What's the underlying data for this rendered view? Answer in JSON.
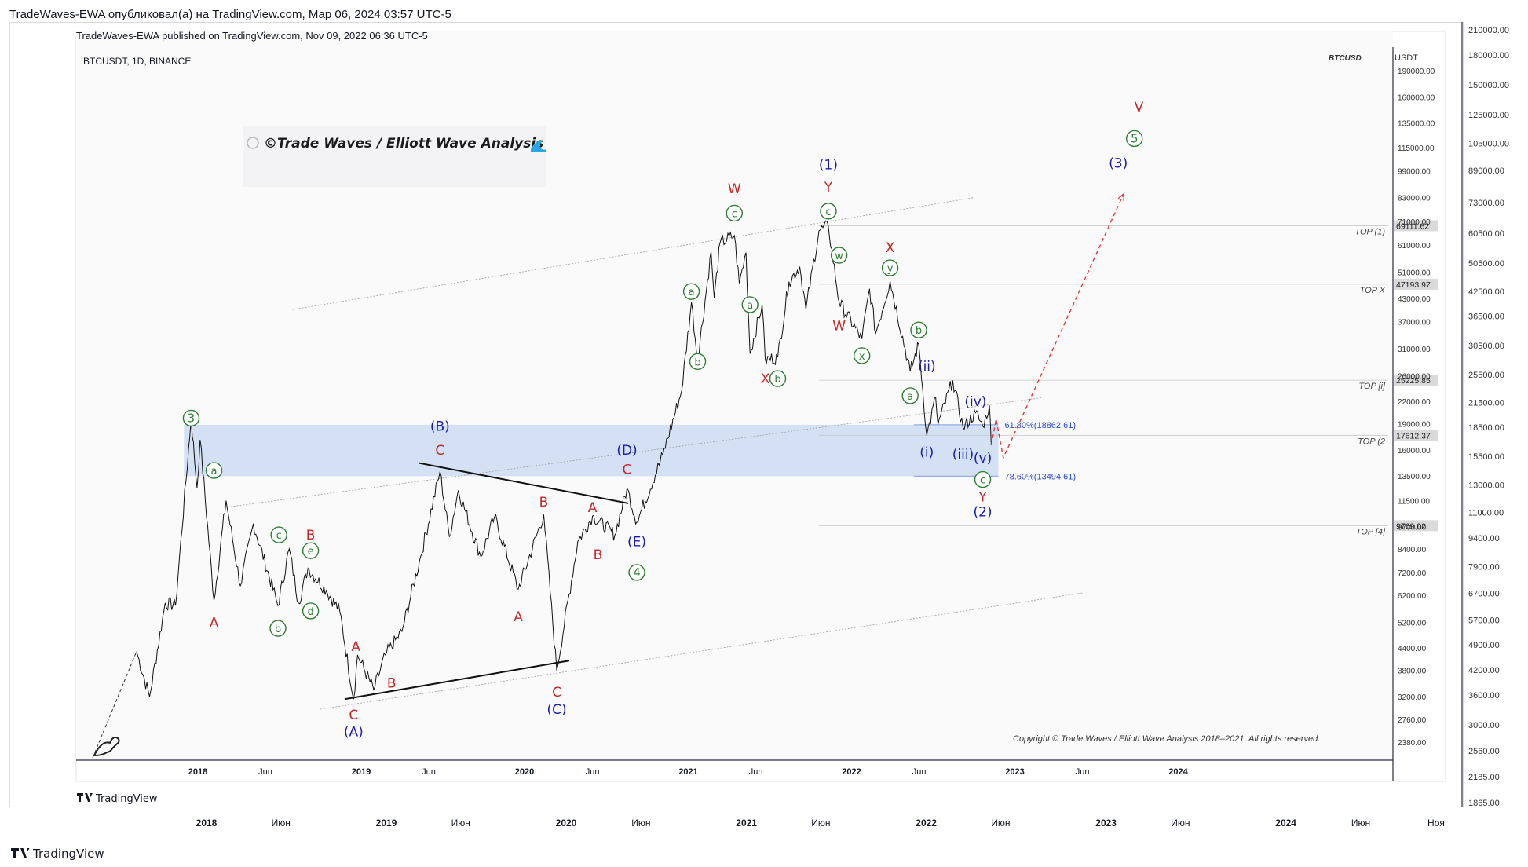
{
  "header": {
    "outer_caption": "TradeWaves-EWA опубликовал(а) на TradingView.com, Мар 06, 2024 03:57 UTC-5",
    "inner_caption": "TradeWaves-EWA published on TradingView.com, Nov 09, 2022 06:36 UTC-5",
    "symbol": "BTCUSDT, 1D, BINANCE",
    "watermark_symbol": "BTCUSD",
    "currency": "USDT",
    "logo_text": "©Trade Waves / Elliott Wave Analysis",
    "copyright": "Copyright © Trade Waves / Elliott Wave Analysis 2018–2021. All rights reserved."
  },
  "brand": {
    "inner": "TradingView",
    "outer": "TradingView"
  },
  "colors": {
    "wave_red": "#c62828",
    "wave_blue": "#1a1ab5",
    "wave_green": "#2e7d32",
    "zone_fill": "#c7d7f2",
    "projection": "#e53935"
  },
  "chart_data": {
    "type": "line",
    "title": "BTCUSDT, 1D, BINANCE",
    "ylabel": "USDT",
    "scale": "log",
    "ylim": [
      2380,
      190000
    ],
    "x_ticks_inner": [
      "2018",
      "Jun",
      "2019",
      "Jun",
      "2020",
      "Jun",
      "2021",
      "Jun",
      "2022",
      "Jun",
      "2023",
      "Jun",
      "2024"
    ],
    "x_ticks_outer": [
      "2018",
      "Июн",
      "2019",
      "Июн",
      "2020",
      "Июн",
      "2021",
      "Июн",
      "2022",
      "Июн",
      "2023",
      "Июн",
      "2024",
      "Июн",
      "Ноя"
    ],
    "y_ticks_inner": [
      "190000.00",
      "160000.00",
      "135000.00",
      "115000.00",
      "99000.00",
      "83000.00",
      "71000.00",
      "61000.00",
      "51000.00",
      "43000.00",
      "37000.00",
      "31000.00",
      "26000.00",
      "22000.00",
      "19000.00",
      "16000.00",
      "13500.00",
      "11500.00",
      "9700.00",
      "8400.00",
      "7200.00",
      "6200.00",
      "5200.00",
      "4400.00",
      "3800.00",
      "3200.00",
      "2760.00",
      "2380.00"
    ],
    "y_ticks_outer": [
      "210000.00",
      "180000.00",
      "150000.00",
      "125000.00",
      "105000.00",
      "89000.00",
      "73000.00",
      "60500.00",
      "50500.00",
      "42500.00",
      "36500.00",
      "30500.00",
      "25500.00",
      "21500.00",
      "18500.00",
      "15500.00",
      "13000.00",
      "11000.00",
      "9400.00",
      "7900.00",
      "6700.00",
      "5700.00",
      "4900.00",
      "4200.00",
      "3600.00",
      "3000.00",
      "2560.00",
      "2185.00",
      "1865.00"
    ],
    "price_tags": [
      "69111.62",
      "47193.97",
      "25225.85",
      "17612.37",
      "9769.02"
    ],
    "level_labels": [
      "TOP (1)",
      "TOP X",
      "TOP [i]",
      "TOP (2",
      "TOP [4]"
    ],
    "fib_levels": [
      {
        "label": "61.80%(18862.61)",
        "value": 18862.61
      },
      {
        "label": "78.60%(13494.61)",
        "value": 13494.61
      }
    ],
    "series": [
      {
        "name": "BTCUSDT",
        "points": [
          [
            "2017-08-17",
            4300
          ],
          [
            "2017-09-15",
            3200
          ],
          [
            "2017-10-20",
            5900
          ],
          [
            "2017-11-12",
            5800
          ],
          [
            "2017-12-17",
            19700
          ],
          [
            "2017-12-30",
            12500
          ],
          [
            "2018-01-06",
            17100
          ],
          [
            "2018-02-06",
            6000
          ],
          [
            "2018-03-05",
            11500
          ],
          [
            "2018-04-06",
            6600
          ],
          [
            "2018-05-05",
            9900
          ],
          [
            "2018-06-29",
            5800
          ],
          [
            "2018-07-24",
            8400
          ],
          [
            "2018-08-14",
            5900
          ],
          [
            "2018-09-04",
            7400
          ],
          [
            "2018-10-15",
            6400
          ],
          [
            "2018-11-14",
            5600
          ],
          [
            "2018-12-15",
            3150
          ],
          [
            "2018-12-24",
            4200
          ],
          [
            "2019-01-29",
            3350
          ],
          [
            "2019-02-24",
            4200
          ],
          [
            "2019-04-02",
            4900
          ],
          [
            "2019-05-14",
            8000
          ],
          [
            "2019-06-26",
            13900
          ],
          [
            "2019-07-17",
            9100
          ],
          [
            "2019-08-06",
            12300
          ],
          [
            "2019-09-25",
            8000
          ],
          [
            "2019-10-26",
            10350
          ],
          [
            "2019-12-18",
            6450
          ],
          [
            "2020-02-13",
            10500
          ],
          [
            "2020-03-13",
            3800
          ],
          [
            "2020-04-29",
            8800
          ],
          [
            "2020-06-01",
            10400
          ],
          [
            "2020-07-21",
            9200
          ],
          [
            "2020-08-17",
            12450
          ],
          [
            "2020-09-08",
            10000
          ],
          [
            "2020-11-05",
            15500
          ],
          [
            "2020-12-17",
            23500
          ],
          [
            "2021-01-08",
            41900
          ],
          [
            "2021-01-22",
            28800
          ],
          [
            "2021-02-21",
            58300
          ],
          [
            "2021-02-28",
            43000
          ],
          [
            "2021-03-13",
            61800
          ],
          [
            "2021-04-14",
            64800
          ],
          [
            "2021-04-25",
            47500
          ],
          [
            "2021-05-10",
            58000
          ],
          [
            "2021-05-19",
            30000
          ],
          [
            "2021-06-15",
            41300
          ],
          [
            "2021-06-22",
            28800
          ],
          [
            "2021-07-20",
            29300
          ],
          [
            "2021-08-14",
            48000
          ],
          [
            "2021-09-07",
            52900
          ],
          [
            "2021-09-21",
            40000
          ],
          [
            "2021-10-20",
            66900
          ],
          [
            "2021-11-10",
            69000
          ],
          [
            "2021-12-04",
            42000
          ],
          [
            "2022-01-24",
            33000
          ],
          [
            "2022-02-10",
            45800
          ],
          [
            "2022-02-24",
            34300
          ],
          [
            "2022-03-28",
            48200
          ],
          [
            "2022-05-12",
            26700
          ],
          [
            "2022-05-31",
            31900
          ],
          [
            "2022-06-18",
            17600
          ],
          [
            "2022-07-08",
            22500
          ],
          [
            "2022-07-13",
            18900
          ],
          [
            "2022-08-15",
            25200
          ],
          [
            "2022-09-07",
            18500
          ],
          [
            "2022-10-05",
            20400
          ],
          [
            "2022-10-21",
            18700
          ],
          [
            "2022-11-05",
            21400
          ],
          [
            "2022-11-09",
            16500
          ]
        ]
      },
      {
        "name": "projection",
        "points": [
          [
            "2022-11-09",
            16500
          ],
          [
            "2022-11-20",
            19600
          ],
          [
            "2022-12-06",
            15200
          ],
          [
            "2023-09-01",
            85000
          ]
        ]
      }
    ],
    "labels": [
      {
        "text": "3",
        "style": "circle",
        "color": "green",
        "date": "2017-12-17",
        "price": 19700
      },
      {
        "text": "a",
        "style": "circle",
        "color": "green",
        "date": "2018-02-06",
        "price": 14000
      },
      {
        "text": "A",
        "style": "plain",
        "color": "red",
        "date": "2018-02-06",
        "price": 5200
      },
      {
        "text": "c",
        "style": "circle",
        "color": "green",
        "date": "2018-07-01",
        "price": 9200
      },
      {
        "text": "b",
        "style": "circle",
        "color": "green",
        "date": "2018-06-29",
        "price": 5000
      },
      {
        "text": "B",
        "style": "plain",
        "color": "red",
        "date": "2018-09-10",
        "price": 9200
      },
      {
        "text": "e",
        "style": "circle",
        "color": "green",
        "date": "2018-09-10",
        "price": 8300
      },
      {
        "text": "d",
        "style": "circle",
        "color": "green",
        "date": "2018-09-10",
        "price": 5600
      },
      {
        "text": "A",
        "style": "plain",
        "color": "red",
        "date": "2018-12-20",
        "price": 4450
      },
      {
        "text": "B",
        "style": "plain",
        "color": "red",
        "date": "2019-03-10",
        "price": 3500
      },
      {
        "text": "C",
        "style": "plain",
        "color": "red",
        "date": "2018-12-15",
        "price": 2850
      },
      {
        "text": "(A)",
        "style": "plain",
        "color": "blue",
        "date": "2018-12-15",
        "price": 2550
      },
      {
        "text": "(B)",
        "style": "plain",
        "color": "blue",
        "date": "2019-06-26",
        "price": 18700
      },
      {
        "text": "C",
        "style": "plain",
        "color": "red",
        "date": "2019-06-26",
        "price": 16000
      },
      {
        "text": "B",
        "style": "plain",
        "color": "red",
        "date": "2020-02-13",
        "price": 11400
      },
      {
        "text": "A",
        "style": "plain",
        "color": "red",
        "date": "2019-12-18",
        "price": 5400
      },
      {
        "text": "C",
        "style": "plain",
        "color": "red",
        "date": "2020-03-13",
        "price": 3300
      },
      {
        "text": "(C)",
        "style": "plain",
        "color": "blue",
        "date": "2020-03-13",
        "price": 2950
      },
      {
        "text": "A",
        "style": "plain",
        "color": "red",
        "date": "2020-06-01",
        "price": 11000
      },
      {
        "text": "B",
        "style": "plain",
        "color": "red",
        "date": "2020-06-13",
        "price": 8100
      },
      {
        "text": "C",
        "style": "plain",
        "color": "red",
        "date": "2020-08-17",
        "price": 14100
      },
      {
        "text": "(D)",
        "style": "plain",
        "color": "blue",
        "date": "2020-08-17",
        "price": 16000
      },
      {
        "text": "(E)",
        "style": "plain",
        "color": "blue",
        "date": "2020-09-08",
        "price": 8800
      },
      {
        "text": "4",
        "style": "circle",
        "color": "green",
        "date": "2020-09-08",
        "price": 7200
      },
      {
        "text": "a",
        "style": "circle",
        "color": "green",
        "date": "2021-01-08",
        "price": 45000
      },
      {
        "text": "b",
        "style": "circle",
        "color": "green",
        "date": "2021-01-22",
        "price": 28500
      },
      {
        "text": "c",
        "style": "circle",
        "color": "green",
        "date": "2021-04-14",
        "price": 75000
      },
      {
        "text": "W",
        "style": "plain",
        "color": "red",
        "date": "2021-04-14",
        "price": 88000
      },
      {
        "text": "a",
        "style": "circle",
        "color": "green",
        "date": "2021-05-19",
        "price": 41300
      },
      {
        "text": "X",
        "style": "plain",
        "color": "red",
        "date": "2021-06-22",
        "price": 25500
      },
      {
        "text": "b",
        "style": "circle",
        "color": "green",
        "date": "2021-07-20",
        "price": 25500
      },
      {
        "text": "c",
        "style": "circle",
        "color": "green",
        "date": "2021-11-10",
        "price": 76000
      },
      {
        "text": "Y",
        "style": "plain",
        "color": "red",
        "date": "2021-11-10",
        "price": 89000
      },
      {
        "text": "(1)",
        "style": "plain",
        "color": "blue",
        "date": "2021-11-10",
        "price": 103000
      },
      {
        "text": "w",
        "style": "circle",
        "color": "green",
        "date": "2021-12-04",
        "price": 57000
      },
      {
        "text": "W",
        "style": "plain",
        "color": "red",
        "date": "2021-12-04",
        "price": 36000
      },
      {
        "text": "x",
        "style": "circle",
        "color": "green",
        "date": "2022-01-24",
        "price": 29600
      },
      {
        "text": "X",
        "style": "plain",
        "color": "red",
        "date": "2022-03-28",
        "price": 60000
      },
      {
        "text": "y",
        "style": "circle",
        "color": "green",
        "date": "2022-03-28",
        "price": 52500
      },
      {
        "text": "b",
        "style": "circle",
        "color": "green",
        "date": "2022-05-31",
        "price": 35000
      },
      {
        "text": "a",
        "style": "circle",
        "color": "green",
        "date": "2022-05-12",
        "price": 22800
      },
      {
        "text": "(ii)",
        "style": "plain",
        "color": "blue",
        "date": "2022-06-18",
        "price": 27700
      },
      {
        "text": "(i)",
        "style": "plain",
        "color": "blue",
        "date": "2022-06-18",
        "price": 15800
      },
      {
        "text": "(iv)",
        "style": "plain",
        "color": "blue",
        "date": "2022-10-05",
        "price": 22000
      },
      {
        "text": "(iii)",
        "style": "plain",
        "color": "blue",
        "date": "2022-09-07",
        "price": 15600
      },
      {
        "text": "(v)",
        "style": "plain",
        "color": "blue",
        "date": "2022-10-21",
        "price": 15200
      },
      {
        "text": "c",
        "style": "circle",
        "color": "green",
        "date": "2022-10-21",
        "price": 13200
      },
      {
        "text": "Y",
        "style": "plain",
        "color": "red",
        "date": "2022-10-21",
        "price": 11800
      },
      {
        "text": "(2)",
        "style": "plain",
        "color": "blue",
        "date": "2022-10-21",
        "price": 10700
      },
      {
        "text": "(3)",
        "style": "plain",
        "color": "blue",
        "date": "2023-08-20",
        "price": 104000
      },
      {
        "text": "5",
        "style": "circle",
        "color": "green",
        "date": "2023-09-25",
        "price": 122000
      },
      {
        "text": "V",
        "style": "plain",
        "color": "red",
        "date": "2023-10-05",
        "price": 150000
      }
    ]
  }
}
